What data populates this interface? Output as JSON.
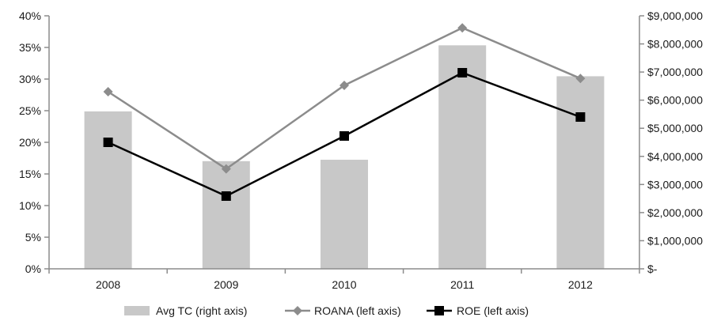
{
  "chart_data": {
    "type": "bar+line",
    "categories": [
      "2008",
      "2009",
      "2010",
      "2011",
      "2012"
    ],
    "left_axis": {
      "ylim": [
        0,
        0.4
      ],
      "ticks": [
        0,
        0.05,
        0.1,
        0.15,
        0.2,
        0.25,
        0.3,
        0.35,
        0.4
      ],
      "tick_labels": [
        "0%",
        "5%",
        "10%",
        "15%",
        "20%",
        "25%",
        "30%",
        "35%",
        "40%"
      ]
    },
    "right_axis": {
      "ylim": [
        0,
        9000000
      ],
      "ticks": [
        0,
        1000000,
        2000000,
        3000000,
        4000000,
        5000000,
        6000000,
        7000000,
        8000000,
        9000000
      ],
      "tick_labels": [
        "$-",
        "$1,000,000",
        "$2,000,000",
        "$3,000,000",
        "$4,000,000",
        "$5,000,000",
        "$6,000,000",
        "$7,000,000",
        "$8,000,000",
        "$9,000,000"
      ]
    },
    "series": [
      {
        "name": "Avg TC (right axis)",
        "kind": "bar",
        "axis": "right",
        "color": "#c8c8c8",
        "values": [
          5600000,
          3830000,
          3880000,
          7950000,
          6850000
        ]
      },
      {
        "name": "ROANA (left axis)",
        "kind": "line",
        "axis": "left",
        "color": "#8c8c8c",
        "marker": "diamond",
        "values": [
          0.28,
          0.158,
          0.29,
          0.381,
          0.301
        ]
      },
      {
        "name": "ROE (left axis)",
        "kind": "line",
        "axis": "left",
        "color": "#000000",
        "marker": "square",
        "values": [
          0.2,
          0.115,
          0.21,
          0.31,
          0.24
        ]
      }
    ],
    "grid": false,
    "legend_position": "bottom"
  }
}
